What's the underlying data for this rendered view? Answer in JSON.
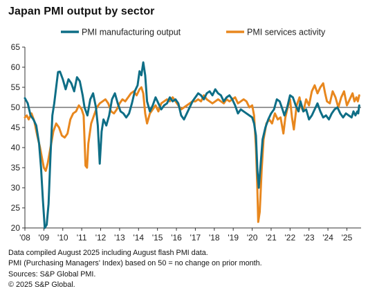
{
  "chart_data": {
    "type": "line",
    "title": "Japan PMI output by sector",
    "xlabel": "",
    "ylabel": "",
    "ylim": [
      20,
      65
    ],
    "yticks": [
      20,
      25,
      30,
      35,
      40,
      45,
      50,
      55,
      60,
      65
    ],
    "xticks": [
      "'08",
      "'09",
      "'10",
      "'11",
      "'12",
      "'13",
      "'14",
      "'15",
      "'16",
      "'17",
      "'18",
      "'19",
      "'20",
      "'21",
      "'22",
      "'23",
      "'24",
      "'25"
    ],
    "x_start_year": 2008,
    "x_end_year": 2025.75,
    "grid": false,
    "legend_position": "top",
    "series": [
      {
        "name": "PMI manufacturing output",
        "color": "#0e6e86",
        "points": [
          [
            2008.0,
            52.3
          ],
          [
            2008.15,
            51.0
          ],
          [
            2008.3,
            48.0
          ],
          [
            2008.45,
            47.0
          ],
          [
            2008.6,
            45.5
          ],
          [
            2008.75,
            41.0
          ],
          [
            2008.85,
            35.0
          ],
          [
            2008.95,
            27.0
          ],
          [
            2009.05,
            20.0
          ],
          [
            2009.15,
            20.8
          ],
          [
            2009.25,
            26.0
          ],
          [
            2009.35,
            38.0
          ],
          [
            2009.45,
            48.0
          ],
          [
            2009.55,
            51.0
          ],
          [
            2009.65,
            55.0
          ],
          [
            2009.75,
            58.8
          ],
          [
            2009.85,
            58.9
          ],
          [
            2010.0,
            57.0
          ],
          [
            2010.15,
            54.5
          ],
          [
            2010.3,
            57.0
          ],
          [
            2010.45,
            56.0
          ],
          [
            2010.6,
            54.0
          ],
          [
            2010.75,
            57.5
          ],
          [
            2010.9,
            56.5
          ],
          [
            2011.05,
            53.0
          ],
          [
            2011.15,
            50.0
          ],
          [
            2011.3,
            48.0
          ],
          [
            2011.45,
            52.0
          ],
          [
            2011.6,
            53.5
          ],
          [
            2011.75,
            50.0
          ],
          [
            2011.85,
            45.5
          ],
          [
            2011.95,
            36.0
          ],
          [
            2012.05,
            44.0
          ],
          [
            2012.15,
            47.0
          ],
          [
            2012.3,
            45.5
          ],
          [
            2012.45,
            48.0
          ],
          [
            2012.6,
            52.0
          ],
          [
            2012.75,
            53.5
          ],
          [
            2012.9,
            51.0
          ],
          [
            2013.05,
            49.0
          ],
          [
            2013.2,
            48.5
          ],
          [
            2013.35,
            47.5
          ],
          [
            2013.5,
            48.5
          ],
          [
            2013.65,
            51.0
          ],
          [
            2013.8,
            54.0
          ],
          [
            2013.95,
            55.5
          ],
          [
            2014.05,
            59.0
          ],
          [
            2014.15,
            58.0
          ],
          [
            2014.25,
            61.2
          ],
          [
            2014.35,
            58.0
          ],
          [
            2014.45,
            51.5
          ],
          [
            2014.6,
            49.0
          ],
          [
            2014.75,
            50.5
          ],
          [
            2014.9,
            52.5
          ],
          [
            2015.05,
            51.0
          ],
          [
            2015.2,
            49.5
          ],
          [
            2015.35,
            50.5
          ],
          [
            2015.5,
            51.0
          ],
          [
            2015.65,
            52.5
          ],
          [
            2015.8,
            51.5
          ],
          [
            2015.95,
            52.0
          ],
          [
            2016.1,
            51.0
          ],
          [
            2016.25,
            48.0
          ],
          [
            2016.4,
            47.0
          ],
          [
            2016.55,
            48.5
          ],
          [
            2016.7,
            50.0
          ],
          [
            2016.85,
            51.5
          ],
          [
            2017.0,
            52.5
          ],
          [
            2017.15,
            53.5
          ],
          [
            2017.3,
            53.0
          ],
          [
            2017.45,
            52.0
          ],
          [
            2017.6,
            53.5
          ],
          [
            2017.75,
            54.0
          ],
          [
            2017.9,
            53.0
          ],
          [
            2018.05,
            54.5
          ],
          [
            2018.2,
            53.5
          ],
          [
            2018.35,
            53.0
          ],
          [
            2018.5,
            51.5
          ],
          [
            2018.65,
            52.5
          ],
          [
            2018.8,
            53.0
          ],
          [
            2018.95,
            52.0
          ],
          [
            2019.1,
            50.5
          ],
          [
            2019.25,
            48.5
          ],
          [
            2019.4,
            49.5
          ],
          [
            2019.55,
            49.0
          ],
          [
            2019.7,
            48.5
          ],
          [
            2019.85,
            48.0
          ],
          [
            2020.0,
            47.5
          ],
          [
            2020.1,
            46.0
          ],
          [
            2020.2,
            43.0
          ],
          [
            2020.28,
            34.0
          ],
          [
            2020.35,
            30.0
          ],
          [
            2020.45,
            36.0
          ],
          [
            2020.55,
            42.0
          ],
          [
            2020.7,
            45.0
          ],
          [
            2020.85,
            47.0
          ],
          [
            2021.0,
            48.5
          ],
          [
            2021.15,
            49.5
          ],
          [
            2021.3,
            52.0
          ],
          [
            2021.45,
            51.5
          ],
          [
            2021.6,
            49.5
          ],
          [
            2021.7,
            48.0
          ],
          [
            2021.85,
            50.0
          ],
          [
            2022.0,
            53.0
          ],
          [
            2022.15,
            52.5
          ],
          [
            2022.3,
            50.5
          ],
          [
            2022.45,
            49.0
          ],
          [
            2022.55,
            51.5
          ],
          [
            2022.7,
            49.0
          ],
          [
            2022.85,
            49.5
          ],
          [
            2023.0,
            47.0
          ],
          [
            2023.15,
            48.0
          ],
          [
            2023.3,
            49.5
          ],
          [
            2023.45,
            51.0
          ],
          [
            2023.6,
            49.0
          ],
          [
            2023.75,
            47.5
          ],
          [
            2023.9,
            48.0
          ],
          [
            2024.05,
            47.0
          ],
          [
            2024.2,
            48.5
          ],
          [
            2024.35,
            49.5
          ],
          [
            2024.5,
            50.0
          ],
          [
            2024.65,
            48.5
          ],
          [
            2024.8,
            47.5
          ],
          [
            2024.95,
            48.5
          ],
          [
            2025.1,
            48.0
          ],
          [
            2025.25,
            47.5
          ],
          [
            2025.35,
            49.0
          ],
          [
            2025.45,
            48.0
          ],
          [
            2025.55,
            49.0
          ],
          [
            2025.6,
            48.5
          ],
          [
            2025.65,
            50.5
          ]
        ]
      },
      {
        "name": "PMI services activity",
        "color": "#e8871e",
        "points": [
          [
            2008.0,
            47.5
          ],
          [
            2008.1,
            48.0
          ],
          [
            2008.2,
            47.0
          ],
          [
            2008.35,
            48.5
          ],
          [
            2008.5,
            46.5
          ],
          [
            2008.65,
            43.0
          ],
          [
            2008.8,
            40.0
          ],
          [
            2008.9,
            37.5
          ],
          [
            2009.0,
            35.0
          ],
          [
            2009.1,
            34.2
          ],
          [
            2009.2,
            36.0
          ],
          [
            2009.35,
            40.0
          ],
          [
            2009.5,
            44.0
          ],
          [
            2009.65,
            46.0
          ],
          [
            2009.8,
            45.0
          ],
          [
            2009.95,
            43.0
          ],
          [
            2010.1,
            42.5
          ],
          [
            2010.25,
            43.5
          ],
          [
            2010.4,
            47.0
          ],
          [
            2010.55,
            48.5
          ],
          [
            2010.7,
            49.0
          ],
          [
            2010.85,
            50.5
          ],
          [
            2011.0,
            49.5
          ],
          [
            2011.1,
            48.0
          ],
          [
            2011.2,
            35.5
          ],
          [
            2011.28,
            35.0
          ],
          [
            2011.35,
            41.0
          ],
          [
            2011.5,
            46.0
          ],
          [
            2011.65,
            48.0
          ],
          [
            2011.8,
            50.0
          ],
          [
            2011.95,
            51.0
          ],
          [
            2012.1,
            51.5
          ],
          [
            2012.25,
            52.0
          ],
          [
            2012.4,
            51.0
          ],
          [
            2012.55,
            49.0
          ],
          [
            2012.7,
            48.5
          ],
          [
            2012.85,
            49.5
          ],
          [
            2013.0,
            51.0
          ],
          [
            2013.15,
            52.0
          ],
          [
            2013.3,
            51.5
          ],
          [
            2013.45,
            52.5
          ],
          [
            2013.6,
            53.5
          ],
          [
            2013.75,
            54.0
          ],
          [
            2013.9,
            53.0
          ],
          [
            2014.05,
            54.5
          ],
          [
            2014.15,
            55.0
          ],
          [
            2014.25,
            53.5
          ],
          [
            2014.35,
            48.5
          ],
          [
            2014.45,
            46.0
          ],
          [
            2014.6,
            48.5
          ],
          [
            2014.75,
            49.5
          ],
          [
            2014.9,
            50.5
          ],
          [
            2015.05,
            49.0
          ],
          [
            2015.2,
            51.0
          ],
          [
            2015.35,
            51.5
          ],
          [
            2015.5,
            52.0
          ],
          [
            2015.65,
            51.5
          ],
          [
            2015.8,
            52.5
          ],
          [
            2015.95,
            51.5
          ],
          [
            2016.1,
            50.5
          ],
          [
            2016.25,
            49.5
          ],
          [
            2016.4,
            50.0
          ],
          [
            2016.55,
            50.5
          ],
          [
            2016.7,
            51.0
          ],
          [
            2016.85,
            51.5
          ],
          [
            2017.0,
            51.5
          ],
          [
            2017.15,
            52.0
          ],
          [
            2017.3,
            51.5
          ],
          [
            2017.45,
            53.0
          ],
          [
            2017.6,
            52.0
          ],
          [
            2017.75,
            51.5
          ],
          [
            2017.9,
            51.0
          ],
          [
            2018.05,
            51.5
          ],
          [
            2018.2,
            52.0
          ],
          [
            2018.35,
            51.5
          ],
          [
            2018.5,
            51.0
          ],
          [
            2018.65,
            52.0
          ],
          [
            2018.8,
            51.5
          ],
          [
            2018.95,
            52.0
          ],
          [
            2019.1,
            52.5
          ],
          [
            2019.25,
            51.0
          ],
          [
            2019.4,
            51.5
          ],
          [
            2019.55,
            52.0
          ],
          [
            2019.7,
            51.5
          ],
          [
            2019.85,
            50.0
          ],
          [
            2020.0,
            50.5
          ],
          [
            2020.1,
            48.0
          ],
          [
            2020.2,
            40.0
          ],
          [
            2020.27,
            30.0
          ],
          [
            2020.32,
            21.5
          ],
          [
            2020.4,
            24.0
          ],
          [
            2020.5,
            34.5
          ],
          [
            2020.6,
            42.0
          ],
          [
            2020.75,
            46.0
          ],
          [
            2020.9,
            47.0
          ],
          [
            2021.05,
            46.0
          ],
          [
            2021.2,
            48.5
          ],
          [
            2021.35,
            47.0
          ],
          [
            2021.5,
            47.5
          ],
          [
            2021.65,
            43.5
          ],
          [
            2021.75,
            47.5
          ],
          [
            2021.9,
            50.5
          ],
          [
            2022.0,
            52.0
          ],
          [
            2022.1,
            47.5
          ],
          [
            2022.2,
            44.5
          ],
          [
            2022.35,
            50.5
          ],
          [
            2022.5,
            52.5
          ],
          [
            2022.6,
            50.0
          ],
          [
            2022.7,
            49.0
          ],
          [
            2022.85,
            52.0
          ],
          [
            2023.0,
            50.5
          ],
          [
            2023.15,
            54.0
          ],
          [
            2023.3,
            55.5
          ],
          [
            2023.45,
            53.5
          ],
          [
            2023.6,
            55.0
          ],
          [
            2023.75,
            56.0
          ],
          [
            2023.85,
            53.5
          ],
          [
            2023.95,
            51.5
          ],
          [
            2024.1,
            51.0
          ],
          [
            2024.25,
            54.0
          ],
          [
            2024.4,
            52.5
          ],
          [
            2024.55,
            50.0
          ],
          [
            2024.7,
            52.5
          ],
          [
            2024.85,
            54.0
          ],
          [
            2025.0,
            50.5
          ],
          [
            2025.15,
            52.0
          ],
          [
            2025.3,
            53.5
          ],
          [
            2025.4,
            51.5
          ],
          [
            2025.5,
            52.5
          ],
          [
            2025.58,
            51.5
          ],
          [
            2025.65,
            53.0
          ]
        ]
      }
    ]
  },
  "notes": [
    "Data compiled August 2025 including August flash PMI data.",
    "PMI (Purchasing Managers' Index) based on 50 = no change on prior month.",
    "Sources: S&P Global PMI.",
    "© 2025 S&P Global."
  ]
}
